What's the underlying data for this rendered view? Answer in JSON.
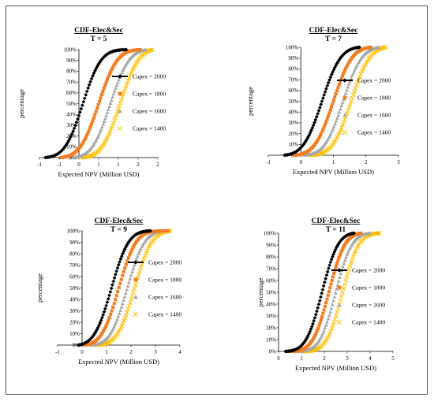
{
  "chart_data": [
    {
      "type": "scatter",
      "title": "CDF-Elec&Sec",
      "subtitle": "T = 5",
      "xlabel": "Expected NPV (Million USD)",
      "ylabel": "percentage",
      "xlim": [
        -1,
        2
      ],
      "ylim": [
        0,
        100
      ],
      "x_ticks": [
        "-1",
        "-1",
        "0",
        "1",
        "1",
        "2",
        "2"
      ],
      "y_ticks": [
        "0%",
        "10%",
        "20%",
        "30%",
        "40%",
        "50%",
        "60%",
        "70%",
        "80%",
        "90%",
        "100%"
      ],
      "grid": false,
      "legend_position": "right",
      "series": [
        {
          "name": "Capex = 2000",
          "color": "#000000",
          "marker": "diamond",
          "mean": 0.1,
          "sd": 0.36,
          "min": -0.85,
          "max": 1.2
        },
        {
          "name": "Capex = 1800",
          "color": "#f47c20",
          "marker": "square",
          "mean": 0.5,
          "sd": 0.37,
          "min": -0.45,
          "max": 1.55
        },
        {
          "name": "Capex = 1600",
          "color": "#a6a6a6",
          "marker": "triangle",
          "mean": 0.8,
          "sd": 0.37,
          "min": -0.15,
          "max": 1.7
        },
        {
          "name": "Capex = 1400",
          "color": "#ffc000",
          "marker": "x",
          "mean": 1.05,
          "sd": 0.37,
          "min": 0.1,
          "max": 1.85
        }
      ]
    },
    {
      "type": "scatter",
      "title": "CDF-Elec&Sec",
      "subtitle": "T = 7",
      "xlabel": "Expected NPV (Million USD)",
      "ylabel": "percentage",
      "xlim": [
        -1,
        3
      ],
      "ylim": [
        0,
        100
      ],
      "x_ticks": [
        "-1",
        "0",
        "1",
        "2",
        "3"
      ],
      "y_ticks": [
        "0%",
        "10%",
        "20%",
        "30%",
        "40%",
        "50%",
        "60%",
        "70%",
        "80%",
        "90%",
        "100%"
      ],
      "grid": false,
      "legend_position": "right",
      "series": [
        {
          "name": "Capex = 2000",
          "color": "#000000",
          "marker": "diamond",
          "mean": 0.65,
          "sd": 0.45,
          "min": -0.5,
          "max": 1.8
        },
        {
          "name": "Capex = 1800",
          "color": "#f47c20",
          "marker": "square",
          "mean": 1.0,
          "sd": 0.45,
          "min": -0.2,
          "max": 2.15
        },
        {
          "name": "Capex = 1600",
          "color": "#a6a6a6",
          "marker": "triangle",
          "mean": 1.3,
          "sd": 0.45,
          "min": 0.1,
          "max": 2.4
        },
        {
          "name": "Capex = 1400",
          "color": "#ffc000",
          "marker": "x",
          "mean": 1.55,
          "sd": 0.45,
          "min": 0.3,
          "max": 2.6
        }
      ]
    },
    {
      "type": "scatter",
      "title": "CDF-Elec&Sec",
      "subtitle": "T = 9",
      "xlabel": "Expected NPV (Million USD)",
      "ylabel": "percentage",
      "xlim": [
        -1,
        4
      ],
      "ylim": [
        0,
        100
      ],
      "x_ticks": [
        "-1",
        "0",
        "1",
        "2",
        "3",
        "4"
      ],
      "y_ticks": [
        "0%",
        "10%",
        "20%",
        "30%",
        "40%",
        "50%",
        "60%",
        "70%",
        "80%",
        "90%",
        "100%"
      ],
      "grid": false,
      "legend_position": "right",
      "series": [
        {
          "name": "Capex = 2000",
          "color": "#000000",
          "marker": "diamond",
          "mean": 1.2,
          "sd": 0.55,
          "min": -0.15,
          "max": 2.8
        },
        {
          "name": "Capex = 1800",
          "color": "#f47c20",
          "marker": "square",
          "mean": 1.5,
          "sd": 0.55,
          "min": 0.1,
          "max": 3.5
        },
        {
          "name": "Capex = 1600",
          "color": "#a6a6a6",
          "marker": "triangle",
          "mean": 1.85,
          "sd": 0.55,
          "min": 0.35,
          "max": 3.4
        },
        {
          "name": "Capex = 1400",
          "color": "#ffc000",
          "marker": "x",
          "mean": 2.15,
          "sd": 0.55,
          "min": 0.6,
          "max": 3.6
        }
      ]
    },
    {
      "type": "scatter",
      "title": "CDF-Elec&Sec",
      "subtitle": "T = 11",
      "xlabel": "Expected NPV (Million USD)",
      "ylabel": "percentage",
      "xlim": [
        0,
        5
      ],
      "ylim": [
        0,
        100
      ],
      "x_ticks": [
        "0",
        "1",
        "2",
        "3",
        "4",
        "5"
      ],
      "y_ticks": [
        "0%",
        "10%",
        "20%",
        "30%",
        "40%",
        "50%",
        "60%",
        "70%",
        "80%",
        "90%",
        "100%"
      ],
      "grid": false,
      "legend_position": "right",
      "series": [
        {
          "name": "Capex = 2000",
          "color": "#000000",
          "marker": "diamond",
          "mean": 1.9,
          "sd": 0.55,
          "min": 0.3,
          "max": 3.3
        },
        {
          "name": "Capex = 1800",
          "color": "#f47c20",
          "marker": "square",
          "mean": 2.2,
          "sd": 0.55,
          "min": 0.55,
          "max": 3.6
        },
        {
          "name": "Capex = 1600",
          "color": "#a6a6a6",
          "marker": "triangle",
          "mean": 2.5,
          "sd": 0.55,
          "min": 0.8,
          "max": 4.0
        },
        {
          "name": "Capex = 1400",
          "color": "#ffc000",
          "marker": "x",
          "mean": 2.8,
          "sd": 0.55,
          "min": 1.1,
          "max": 4.4
        }
      ]
    }
  ]
}
